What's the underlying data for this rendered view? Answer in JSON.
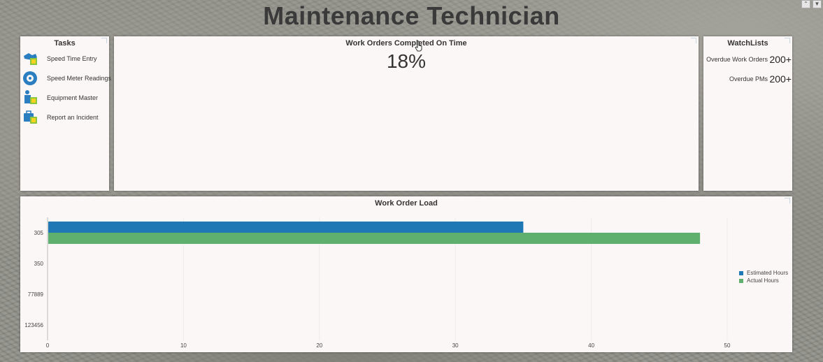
{
  "page": {
    "title": "Maintenance Technician"
  },
  "corner_icons": [
    "collapse-icon",
    "filter-icon"
  ],
  "tasks": {
    "title": "Tasks",
    "items": [
      {
        "label": "Speed Time Entry",
        "icon": "time-entry-icon"
      },
      {
        "label": "Speed Meter Readings",
        "icon": "meter-readings-icon"
      },
      {
        "label": "Equipment Master",
        "icon": "equipment-master-icon"
      },
      {
        "label": "Report an Incident",
        "icon": "incident-report-icon"
      }
    ]
  },
  "work_orders": {
    "title": "Work Orders Completed On Time",
    "value": "18%"
  },
  "watchlists": {
    "title": "WatchLists",
    "items": [
      {
        "label": "Overdue Work Orders",
        "count": "200+"
      },
      {
        "label": "Overdue PMs",
        "count": "200+"
      }
    ]
  },
  "colors": {
    "estimated": "#1f77b4",
    "actual": "#5fb06e",
    "panel_bg": "#fcf7f7"
  },
  "chart_data": {
    "type": "bar",
    "orientation": "horizontal",
    "title": "Work Order Load",
    "categories": [
      "305",
      "350",
      "77889",
      "123456"
    ],
    "series": [
      {
        "name": "Estimated Hours",
        "values": [
          35,
          0,
          0,
          0
        ]
      },
      {
        "name": "Actual Hours",
        "values": [
          48,
          0,
          0,
          0
        ]
      }
    ],
    "xlim": [
      0,
      50
    ],
    "xticks": [
      "0",
      "10",
      "20",
      "30",
      "40",
      "50"
    ],
    "grid": true,
    "legend": "right"
  }
}
